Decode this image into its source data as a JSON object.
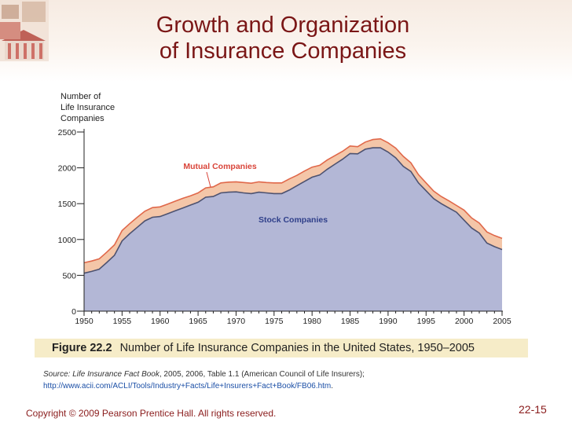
{
  "slide": {
    "title_line1": "Growth and Organization",
    "title_line2": "of Insurance Companies",
    "copyright": "Copyright © 2009 Pearson Prentice Hall. All rights reserved.",
    "slide_number": "22-15"
  },
  "figure": {
    "label": "Figure 22.2",
    "caption": "Number of Life Insurance Companies in the United States, 1950–2005",
    "source_italic": "Source: Life Insurance Fact Book",
    "source_text": ", 2005, 2006, Table 1.1 (American Council of Life Insurers); ",
    "source_link": "http://www.acii.com/ACLI/Tools/Industry+Facts/Life+Insurers+Fact+Book/FB06.htm",
    "source_end": "."
  },
  "colors": {
    "stock_fill": "#b3b7d6",
    "stock_line": "#4d5270",
    "mutual_fill": "#f4c6a8",
    "mutual_line": "#e0684a",
    "title": "#7a1616",
    "annotation": "#d9453a"
  },
  "chart_data": {
    "type": "area",
    "title": "",
    "ylabel_lines": [
      "Number of",
      "Life Insurance",
      "Companies"
    ],
    "xlabel": "",
    "xlim": [
      1950,
      2005
    ],
    "ylim": [
      0,
      2500
    ],
    "x_ticks": [
      1950,
      1955,
      1960,
      1965,
      1970,
      1975,
      1980,
      1985,
      1990,
      1995,
      2000,
      2005
    ],
    "y_ticks": [
      0,
      500,
      1000,
      1500,
      2000,
      2500
    ],
    "x": [
      1950,
      1951,
      1952,
      1953,
      1954,
      1955,
      1956,
      1957,
      1958,
      1959,
      1960,
      1961,
      1962,
      1963,
      1964,
      1965,
      1966,
      1967,
      1968,
      1969,
      1970,
      1971,
      1972,
      1973,
      1974,
      1975,
      1976,
      1977,
      1978,
      1979,
      1980,
      1981,
      1982,
      1983,
      1984,
      1985,
      1986,
      1987,
      1988,
      1989,
      1990,
      1991,
      1992,
      1993,
      1994,
      1995,
      1996,
      1997,
      1998,
      1999,
      2000,
      2001,
      2002,
      2003,
      2004,
      2005
    ],
    "series": [
      {
        "name": "Stock Companies",
        "values": [
          530,
          555,
          585,
          680,
          780,
          980,
          1080,
          1170,
          1260,
          1310,
          1320,
          1360,
          1400,
          1440,
          1480,
          1520,
          1590,
          1600,
          1650,
          1660,
          1665,
          1650,
          1640,
          1660,
          1650,
          1640,
          1640,
          1690,
          1750,
          1810,
          1870,
          1900,
          1980,
          2050,
          2120,
          2200,
          2195,
          2260,
          2280,
          2280,
          2220,
          2140,
          2020,
          1950,
          1790,
          1680,
          1570,
          1500,
          1440,
          1380,
          1270,
          1160,
          1090,
          950,
          900,
          860
        ]
      },
      {
        "name": "Mutual Companies",
        "values": [
          145,
          145,
          145,
          145,
          145,
          145,
          140,
          140,
          135,
          135,
          135,
          135,
          135,
          135,
          130,
          130,
          130,
          135,
          140,
          140,
          140,
          145,
          145,
          145,
          145,
          150,
          150,
          155,
          145,
          145,
          140,
          135,
          130,
          120,
          110,
          105,
          100,
          100,
          115,
          125,
          130,
          135,
          140,
          120,
          115,
          110,
          105,
          100,
          100,
          95,
          140,
          140,
          140,
          155,
          155,
          155
        ]
      }
    ],
    "annotations": [
      {
        "text": "Mutual Companies"
      },
      {
        "text": "Stock Companies"
      }
    ]
  }
}
